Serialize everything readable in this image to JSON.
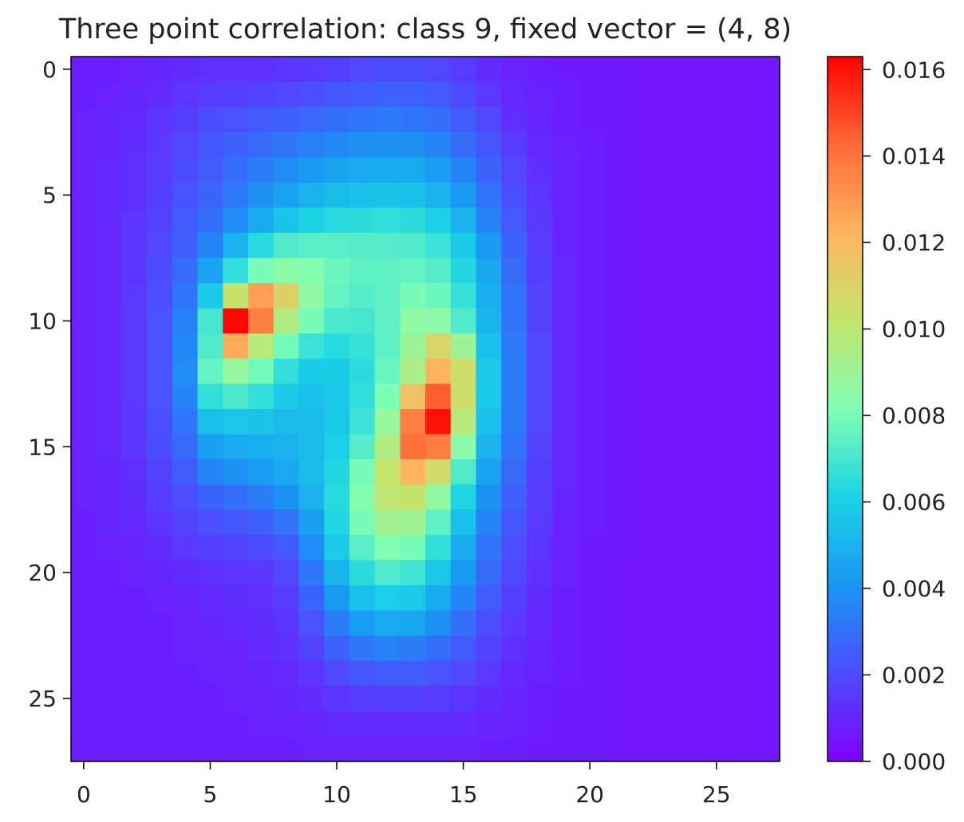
{
  "chart_data": {
    "type": "heatmap",
    "title": "Three point correlation: class 9, fixed vector = (4, 8)",
    "xlabel": "",
    "ylabel": "",
    "rows": 28,
    "cols": 28,
    "x_ticks": [
      "0",
      "5",
      "10",
      "15",
      "20",
      "25"
    ],
    "y_ticks": [
      "0",
      "5",
      "10",
      "15",
      "20",
      "25"
    ],
    "colormap": "rainbow",
    "colorbar": {
      "min": 0.0,
      "max": 0.0163,
      "ticks": [
        "0.000",
        "0.002",
        "0.004",
        "0.006",
        "0.008",
        "0.010",
        "0.012",
        "0.014",
        "0.016"
      ]
    },
    "grid": false,
    "note": "values approximated from the colormap, data units",
    "values": [
      [
        0.0008,
        0.0008,
        0.0009,
        0.001,
        0.0012,
        0.0013,
        0.0013,
        0.0013,
        0.0014,
        0.0015,
        0.0017,
        0.0019,
        0.002,
        0.002,
        0.0019,
        0.0016,
        0.0012,
        0.0009,
        0.0008,
        0.0007,
        0.0007,
        0.0007,
        0.0006,
        0.0006,
        0.0006,
        0.0006,
        0.0006,
        0.0006
      ],
      [
        0.0008,
        0.0009,
        0.001,
        0.0012,
        0.0014,
        0.0016,
        0.0017,
        0.0018,
        0.0019,
        0.0021,
        0.0023,
        0.0025,
        0.0026,
        0.0026,
        0.0024,
        0.002,
        0.0015,
        0.0011,
        0.0009,
        0.0008,
        0.0007,
        0.0007,
        0.0006,
        0.0006,
        0.0006,
        0.0006,
        0.0006,
        0.0006
      ],
      [
        0.0009,
        0.001,
        0.0011,
        0.0014,
        0.0017,
        0.002,
        0.0022,
        0.0024,
        0.0026,
        0.0028,
        0.003,
        0.0032,
        0.0033,
        0.0032,
        0.003,
        0.0025,
        0.0019,
        0.0013,
        0.001,
        0.0008,
        0.0007,
        0.0007,
        0.0006,
        0.0006,
        0.0006,
        0.0006,
        0.0006,
        0.0006
      ],
      [
        0.0009,
        0.001,
        0.0012,
        0.0015,
        0.0019,
        0.0023,
        0.0026,
        0.0029,
        0.0032,
        0.0035,
        0.0037,
        0.0039,
        0.004,
        0.0039,
        0.0036,
        0.003,
        0.0023,
        0.0016,
        0.0011,
        0.0009,
        0.0008,
        0.0007,
        0.0006,
        0.0006,
        0.0006,
        0.0006,
        0.0006,
        0.0006
      ],
      [
        0.0009,
        0.0011,
        0.0013,
        0.0016,
        0.002,
        0.0025,
        0.003,
        0.0034,
        0.0038,
        0.0042,
        0.0045,
        0.0047,
        0.0048,
        0.0047,
        0.0043,
        0.0036,
        0.0027,
        0.0019,
        0.0013,
        0.001,
        0.0008,
        0.0007,
        0.0006,
        0.0006,
        0.0006,
        0.0006,
        0.0006,
        0.0006
      ],
      [
        0.0009,
        0.0011,
        0.0013,
        0.0017,
        0.0022,
        0.0027,
        0.0033,
        0.0039,
        0.0045,
        0.005,
        0.0053,
        0.0055,
        0.0056,
        0.0055,
        0.005,
        0.0042,
        0.0031,
        0.0021,
        0.0014,
        0.001,
        0.0008,
        0.0007,
        0.0006,
        0.0006,
        0.0006,
        0.0006,
        0.0006,
        0.0006
      ],
      [
        0.0009,
        0.0011,
        0.0014,
        0.0018,
        0.0024,
        0.003,
        0.0038,
        0.0048,
        0.0056,
        0.0061,
        0.0064,
        0.0065,
        0.0066,
        0.0065,
        0.006,
        0.005,
        0.0036,
        0.0024,
        0.0015,
        0.001,
        0.0008,
        0.0007,
        0.0006,
        0.0006,
        0.0006,
        0.0006,
        0.0006,
        0.0006
      ],
      [
        0.0009,
        0.0011,
        0.0014,
        0.0019,
        0.0026,
        0.0036,
        0.005,
        0.0064,
        0.0072,
        0.0074,
        0.0074,
        0.0073,
        0.0073,
        0.0072,
        0.0068,
        0.0058,
        0.0042,
        0.0027,
        0.0016,
        0.001,
        0.0008,
        0.0007,
        0.0006,
        0.0006,
        0.0006,
        0.0006,
        0.0006,
        0.0006
      ],
      [
        0.0009,
        0.0011,
        0.0014,
        0.002,
        0.0029,
        0.0045,
        0.0066,
        0.008,
        0.0085,
        0.0083,
        0.0078,
        0.0075,
        0.0075,
        0.0076,
        0.0073,
        0.0063,
        0.0046,
        0.0029,
        0.0017,
        0.0011,
        0.0008,
        0.0007,
        0.0006,
        0.0006,
        0.0006,
        0.0006,
        0.0006,
        0.0006
      ],
      [
        0.0009,
        0.0011,
        0.0015,
        0.0021,
        0.0032,
        0.0058,
        0.0103,
        0.0128,
        0.011,
        0.0086,
        0.0076,
        0.0073,
        0.0075,
        0.008,
        0.0078,
        0.0067,
        0.0049,
        0.0031,
        0.0018,
        0.0011,
        0.0008,
        0.0007,
        0.0006,
        0.0006,
        0.0006,
        0.0006,
        0.0006,
        0.0006
      ],
      [
        0.0009,
        0.0011,
        0.0015,
        0.0022,
        0.0035,
        0.007,
        0.0162,
        0.0137,
        0.0096,
        0.008,
        0.0071,
        0.007,
        0.0075,
        0.0086,
        0.0085,
        0.0072,
        0.0051,
        0.0032,
        0.0018,
        0.0011,
        0.0008,
        0.0007,
        0.0006,
        0.0006,
        0.0006,
        0.0006,
        0.0006,
        0.0006
      ],
      [
        0.0009,
        0.0011,
        0.0015,
        0.0022,
        0.0037,
        0.0072,
        0.0124,
        0.0098,
        0.0079,
        0.0068,
        0.0064,
        0.0067,
        0.0075,
        0.009,
        0.0108,
        0.009,
        0.0055,
        0.0033,
        0.0019,
        0.0011,
        0.0008,
        0.0007,
        0.0006,
        0.0006,
        0.0006,
        0.0006,
        0.0006,
        0.0006
      ],
      [
        0.0009,
        0.0011,
        0.0015,
        0.0022,
        0.0038,
        0.0076,
        0.0088,
        0.0079,
        0.0066,
        0.0059,
        0.0059,
        0.0065,
        0.0077,
        0.0095,
        0.0122,
        0.0105,
        0.0058,
        0.0034,
        0.0019,
        0.0011,
        0.0008,
        0.0007,
        0.0006,
        0.0006,
        0.0006,
        0.0006,
        0.0006,
        0.0006
      ],
      [
        0.0009,
        0.0011,
        0.0015,
        0.0022,
        0.0036,
        0.0066,
        0.0071,
        0.0066,
        0.0058,
        0.0055,
        0.0057,
        0.0066,
        0.0081,
        0.0117,
        0.0145,
        0.0105,
        0.0058,
        0.0034,
        0.0019,
        0.0011,
        0.0008,
        0.0007,
        0.0006,
        0.0006,
        0.0006,
        0.0006,
        0.0006,
        0.0006
      ],
      [
        0.0009,
        0.0011,
        0.0014,
        0.0021,
        0.0032,
        0.0054,
        0.0057,
        0.0056,
        0.0053,
        0.0053,
        0.0057,
        0.0068,
        0.0088,
        0.0137,
        0.016,
        0.0098,
        0.0055,
        0.0033,
        0.0019,
        0.0011,
        0.0008,
        0.0007,
        0.0006,
        0.0006,
        0.0006,
        0.0006,
        0.0006,
        0.0006
      ],
      [
        0.0009,
        0.0011,
        0.0014,
        0.002,
        0.0029,
        0.0044,
        0.0047,
        0.0049,
        0.005,
        0.0053,
        0.006,
        0.0073,
        0.0096,
        0.014,
        0.0138,
        0.0085,
        0.005,
        0.0031,
        0.0018,
        0.0011,
        0.0008,
        0.0007,
        0.0006,
        0.0006,
        0.0006,
        0.0006,
        0.0006,
        0.0006
      ],
      [
        0.0009,
        0.001,
        0.0013,
        0.0018,
        0.0025,
        0.0036,
        0.004,
        0.0043,
        0.0047,
        0.0053,
        0.0063,
        0.008,
        0.0102,
        0.0122,
        0.0106,
        0.0072,
        0.0045,
        0.0029,
        0.0017,
        0.0011,
        0.0008,
        0.0007,
        0.0006,
        0.0006,
        0.0006,
        0.0006,
        0.0006,
        0.0006
      ],
      [
        0.0009,
        0.001,
        0.0012,
        0.0016,
        0.0021,
        0.0027,
        0.003,
        0.0034,
        0.004,
        0.005,
        0.0064,
        0.0083,
        0.01,
        0.0103,
        0.0087,
        0.0062,
        0.004,
        0.0026,
        0.0016,
        0.001,
        0.0008,
        0.0007,
        0.0006,
        0.0006,
        0.0006,
        0.0006,
        0.0006,
        0.0006
      ],
      [
        0.0008,
        0.001,
        0.0011,
        0.0014,
        0.0018,
        0.0021,
        0.0023,
        0.0026,
        0.0031,
        0.0044,
        0.0062,
        0.008,
        0.0092,
        0.0091,
        0.0075,
        0.0055,
        0.0036,
        0.0023,
        0.0015,
        0.001,
        0.0008,
        0.0007,
        0.0006,
        0.0006,
        0.0006,
        0.0006,
        0.0006,
        0.0006
      ],
      [
        0.0008,
        0.0009,
        0.001,
        0.0012,
        0.0015,
        0.0017,
        0.0018,
        0.002,
        0.0024,
        0.0038,
        0.0058,
        0.0074,
        0.0082,
        0.008,
        0.0066,
        0.0048,
        0.0032,
        0.0021,
        0.0014,
        0.0009,
        0.0007,
        0.0007,
        0.0006,
        0.0006,
        0.0006,
        0.0006,
        0.0006,
        0.0006
      ],
      [
        0.0008,
        0.0008,
        0.0009,
        0.001,
        0.0012,
        0.0013,
        0.0014,
        0.0015,
        0.0019,
        0.0032,
        0.0051,
        0.0065,
        0.0072,
        0.0069,
        0.0057,
        0.0042,
        0.0029,
        0.0019,
        0.0013,
        0.0009,
        0.0007,
        0.0006,
        0.0006,
        0.0006,
        0.0006,
        0.0006,
        0.0006,
        0.0006
      ],
      [
        0.0008,
        0.0008,
        0.0008,
        0.0009,
        0.001,
        0.0011,
        0.0012,
        0.0013,
        0.0016,
        0.0027,
        0.0042,
        0.0055,
        0.006,
        0.0058,
        0.0048,
        0.0036,
        0.0025,
        0.0017,
        0.0012,
        0.0008,
        0.0007,
        0.0006,
        0.0006,
        0.0006,
        0.0006,
        0.0006,
        0.0006,
        0.0006
      ],
      [
        0.0008,
        0.0008,
        0.0008,
        0.0008,
        0.0009,
        0.001,
        0.0011,
        0.0012,
        0.0014,
        0.0022,
        0.0034,
        0.0043,
        0.0047,
        0.0046,
        0.0039,
        0.003,
        0.0021,
        0.0015,
        0.0011,
        0.0008,
        0.0007,
        0.0006,
        0.0006,
        0.0006,
        0.0006,
        0.0006,
        0.0006,
        0.0006
      ],
      [
        0.0008,
        0.0008,
        0.0008,
        0.0008,
        0.0009,
        0.0009,
        0.001,
        0.0011,
        0.0013,
        0.0018,
        0.0026,
        0.0032,
        0.0035,
        0.0034,
        0.003,
        0.0024,
        0.0018,
        0.0013,
        0.001,
        0.0008,
        0.0007,
        0.0006,
        0.0006,
        0.0006,
        0.0006,
        0.0006,
        0.0006,
        0.0006
      ],
      [
        0.0008,
        0.0008,
        0.0008,
        0.0008,
        0.0008,
        0.0009,
        0.0009,
        0.001,
        0.0011,
        0.0014,
        0.0019,
        0.0023,
        0.0025,
        0.0025,
        0.0022,
        0.0019,
        0.0015,
        0.0011,
        0.0009,
        0.0008,
        0.0007,
        0.0006,
        0.0006,
        0.0006,
        0.0006,
        0.0006,
        0.0006,
        0.0006
      ],
      [
        0.0008,
        0.0008,
        0.0008,
        0.0008,
        0.0008,
        0.0008,
        0.0009,
        0.0009,
        0.001,
        0.0012,
        0.0014,
        0.0016,
        0.0017,
        0.0017,
        0.0016,
        0.0014,
        0.0012,
        0.001,
        0.0008,
        0.0007,
        0.0007,
        0.0006,
        0.0006,
        0.0006,
        0.0006,
        0.0006,
        0.0006,
        0.0006
      ],
      [
        0.0008,
        0.0008,
        0.0008,
        0.0008,
        0.0008,
        0.0008,
        0.0008,
        0.0009,
        0.0009,
        0.001,
        0.0011,
        0.0012,
        0.0012,
        0.0012,
        0.0012,
        0.0011,
        0.001,
        0.0009,
        0.0008,
        0.0007,
        0.0007,
        0.0006,
        0.0006,
        0.0006,
        0.0006,
        0.0006,
        0.0006,
        0.0006
      ],
      [
        0.0008,
        0.0008,
        0.0008,
        0.0008,
        0.0008,
        0.0008,
        0.0008,
        0.0008,
        0.0008,
        0.0009,
        0.0009,
        0.0009,
        0.0009,
        0.0009,
        0.0009,
        0.0009,
        0.0008,
        0.0008,
        0.0007,
        0.0007,
        0.0007,
        0.0006,
        0.0006,
        0.0006,
        0.0006,
        0.0006,
        0.0006,
        0.0006
      ]
    ]
  }
}
